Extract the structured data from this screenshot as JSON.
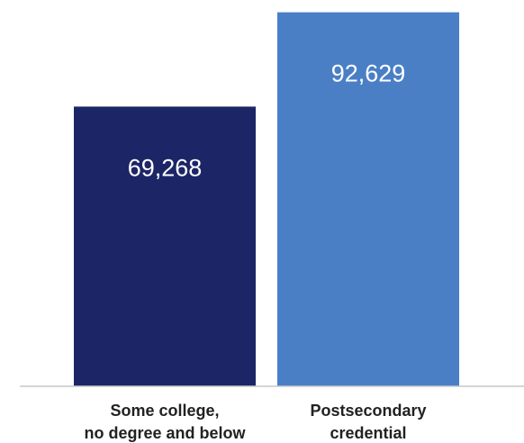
{
  "chart_data": {
    "type": "bar",
    "categories": [
      [
        "Some college,",
        "no degree and below"
      ],
      [
        "Postsecondary",
        "credential"
      ]
    ],
    "values": [
      69268,
      92629
    ],
    "value_labels": [
      "69,268",
      "92,629"
    ],
    "colors": [
      "#1c2566",
      "#4a7fc6"
    ],
    "ylim": [
      0,
      95000
    ],
    "grid": false,
    "legend": "none"
  }
}
